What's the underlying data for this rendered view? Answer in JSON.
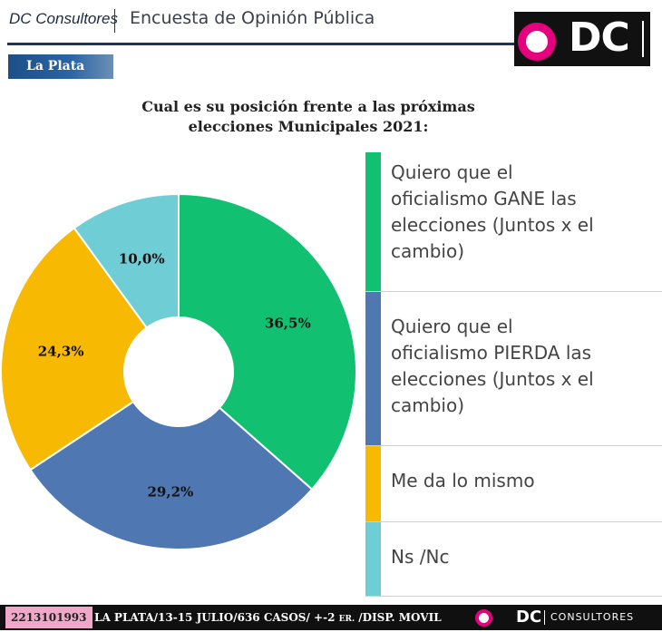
{
  "header": {
    "brand": "DC Consultores",
    "title": "Encuesta de Opinión Pública",
    "logo_text": "DC"
  },
  "region_label": "La Plata",
  "colors": {
    "green": "#12c072",
    "blue": "#4f77b2",
    "yellow": "#f8b902",
    "cyan": "#6fcdd6",
    "pink": "#e5007e",
    "navy": "#1f3555"
  },
  "chart_data": {
    "type": "pie",
    "donut": true,
    "title": "Cual es su posición frente a las próximas elecciones Municipales 2021:",
    "legend_position": "right",
    "slices": [
      {
        "label": "Quiero que el oficialismo GANE las elecciones (Juntos x el cambio)",
        "value": 36.5,
        "display": "36,5%",
        "color": "#12c072"
      },
      {
        "label": "Quiero que el oficialismo PIERDA las elecciones (Juntos x el cambio)",
        "value": 29.2,
        "display": "29,2%",
        "color": "#4f77b2"
      },
      {
        "label": "Me da lo mismo",
        "value": 24.3,
        "display": "24,3%",
        "color": "#f8b902"
      },
      {
        "label": "Ns /Nc",
        "value": 10.0,
        "display": "10,0%",
        "color": "#6fcdd6"
      }
    ]
  },
  "legend": [
    {
      "text": "Quiero que el\noficialismo GANE las\nelecciones (Juntos x el\ncambio)"
    },
    {
      "text": "Quiero que el\noficialismo PIERDA las\nelecciones (Juntos x el\ncambio)"
    },
    {
      "text": "Me da lo mismo"
    },
    {
      "text": "Ns /Nc"
    }
  ],
  "footer": {
    "phone": "2213101993",
    "info_main": "LA PLATA/13-15 JULIO/636 CASOS/ +-2",
    "info_small": "ER.",
    "info_tail": "/DISP. MOVIL",
    "brand": "DC",
    "brand_sub": "CONSULTORES"
  }
}
